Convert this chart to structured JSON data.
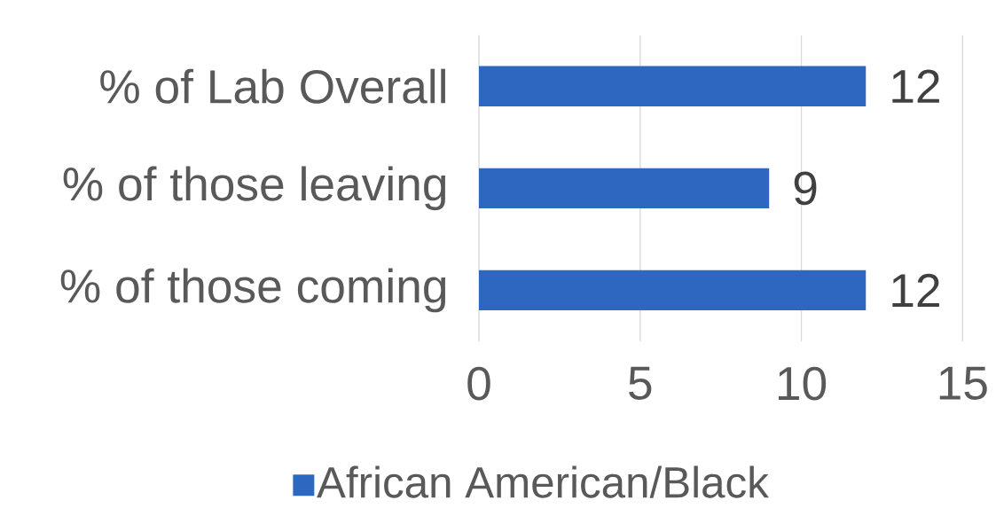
{
  "chart_data": {
    "type": "bar",
    "orientation": "horizontal",
    "categories": [
      "% of Lab Overall",
      "% of those leaving",
      "% of those coming"
    ],
    "series": [
      {
        "name": "African American/Black",
        "color": "#2e67c0",
        "values": [
          12,
          9,
          12
        ]
      }
    ],
    "xlim": [
      0,
      15
    ],
    "xticks": [
      0,
      5,
      10,
      15
    ],
    "grid": "x",
    "legend": "bottom",
    "data_labels": true
  }
}
